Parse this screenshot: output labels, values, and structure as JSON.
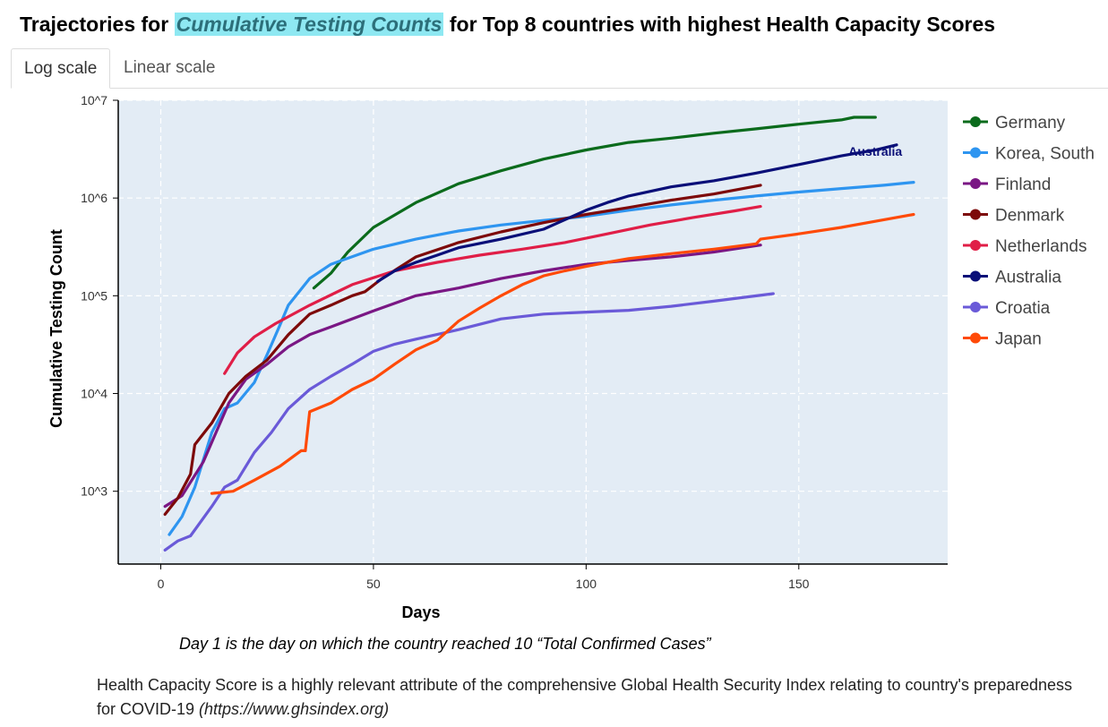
{
  "header": {
    "title_prefix": "Trajectories for ",
    "title_highlight": "Cumulative Testing Counts",
    "title_suffix": " for Top 8 countries with highest Health Capacity Scores"
  },
  "tabs": [
    {
      "label": "Log scale",
      "active": true
    },
    {
      "label": "Linear scale",
      "active": false
    }
  ],
  "notes": {
    "day_note": "Day 1 is the day on which the country reached 10 “Total Confirmed Cases”",
    "description": "Health Capacity Score is a highly relevant attribute of the comprehensive Global Health Security Index relating to country's preparedness for COVID-19 ",
    "url": "(https://www.ghsindex.org)"
  },
  "colors": {
    "plot_background": "#e3ecf5",
    "grid": "#ffffff",
    "highlight": "#8ee8f2"
  },
  "chart_data": {
    "type": "line",
    "yscale": "log",
    "title": "Trajectories for Cumulative Testing Counts for Top 8 countries with highest Health Capacity Scores",
    "xlabel": "Days",
    "ylabel": "Cumulative Testing Count",
    "xlim": [
      -10,
      185
    ],
    "ylim": [
      180,
      10000000
    ],
    "xticks": [
      0,
      50,
      100,
      150
    ],
    "yticks": [
      {
        "value": 1000,
        "label": "10^3"
      },
      {
        "value": 10000,
        "label": "10^4"
      },
      {
        "value": 100000,
        "label": "10^5"
      },
      {
        "value": 1000000,
        "label": "10^6"
      },
      {
        "value": 10000000,
        "label": "10^7"
      }
    ],
    "legend_position": "right",
    "annotations": [
      {
        "text": "Australia",
        "series": "Australia",
        "x": 168,
        "y": 2700000
      }
    ],
    "series": [
      {
        "name": "Germany",
        "color": "#0b6b1c",
        "points": [
          [
            36,
            120000
          ],
          [
            40,
            170000
          ],
          [
            44,
            280000
          ],
          [
            50,
            500000
          ],
          [
            60,
            900000
          ],
          [
            70,
            1400000
          ],
          [
            80,
            1900000
          ],
          [
            90,
            2500000
          ],
          [
            100,
            3100000
          ],
          [
            110,
            3700000
          ],
          [
            120,
            4100000
          ],
          [
            130,
            4600000
          ],
          [
            140,
            5100000
          ],
          [
            150,
            5700000
          ],
          [
            160,
            6300000
          ],
          [
            163,
            6700000
          ],
          [
            168,
            6700000
          ]
        ]
      },
      {
        "name": "Korea, South",
        "color": "#2e95f0",
        "points": [
          [
            2,
            360
          ],
          [
            5,
            550
          ],
          [
            8,
            1100
          ],
          [
            12,
            4000
          ],
          [
            15,
            7000
          ],
          [
            18,
            8000
          ],
          [
            22,
            13000
          ],
          [
            25,
            25000
          ],
          [
            28,
            50000
          ],
          [
            30,
            80000
          ],
          [
            35,
            150000
          ],
          [
            40,
            210000
          ],
          [
            50,
            300000
          ],
          [
            60,
            380000
          ],
          [
            70,
            460000
          ],
          [
            80,
            530000
          ],
          [
            90,
            590000
          ],
          [
            100,
            650000
          ],
          [
            110,
            750000
          ],
          [
            120,
            850000
          ],
          [
            130,
            950000
          ],
          [
            140,
            1050000
          ],
          [
            150,
            1150000
          ],
          [
            160,
            1250000
          ],
          [
            170,
            1350000
          ],
          [
            177,
            1450000
          ]
        ]
      },
      {
        "name": "Finland",
        "color": "#7a1784",
        "points": [
          [
            1,
            700
          ],
          [
            5,
            900
          ],
          [
            10,
            2000
          ],
          [
            13,
            4000
          ],
          [
            16,
            8000
          ],
          [
            20,
            14000
          ],
          [
            25,
            20000
          ],
          [
            30,
            30000
          ],
          [
            35,
            40000
          ],
          [
            40,
            48000
          ],
          [
            50,
            70000
          ],
          [
            60,
            100000
          ],
          [
            70,
            120000
          ],
          [
            80,
            150000
          ],
          [
            90,
            180000
          ],
          [
            100,
            210000
          ],
          [
            110,
            230000
          ],
          [
            120,
            250000
          ],
          [
            130,
            280000
          ],
          [
            141,
            330000
          ]
        ]
      },
      {
        "name": "Denmark",
        "color": "#7d0a0a",
        "points": [
          [
            1,
            580
          ],
          [
            4,
            850
          ],
          [
            7,
            1500
          ],
          [
            8,
            3000
          ],
          [
            12,
            5000
          ],
          [
            16,
            10000
          ],
          [
            20,
            15000
          ],
          [
            25,
            22000
          ],
          [
            30,
            40000
          ],
          [
            35,
            65000
          ],
          [
            40,
            80000
          ],
          [
            45,
            100000
          ],
          [
            48,
            110000
          ],
          [
            52,
            150000
          ],
          [
            60,
            250000
          ],
          [
            70,
            350000
          ],
          [
            80,
            450000
          ],
          [
            90,
            560000
          ],
          [
            100,
            680000
          ],
          [
            110,
            800000
          ],
          [
            120,
            950000
          ],
          [
            130,
            1100000
          ],
          [
            141,
            1350000
          ]
        ]
      },
      {
        "name": "Netherlands",
        "color": "#e01e47",
        "points": [
          [
            15,
            16000
          ],
          [
            18,
            26000
          ],
          [
            22,
            38000
          ],
          [
            27,
            52000
          ],
          [
            35,
            80000
          ],
          [
            45,
            130000
          ],
          [
            55,
            180000
          ],
          [
            65,
            220000
          ],
          [
            75,
            260000
          ],
          [
            85,
            300000
          ],
          [
            95,
            350000
          ],
          [
            105,
            430000
          ],
          [
            115,
            530000
          ],
          [
            125,
            630000
          ],
          [
            135,
            740000
          ],
          [
            141,
            820000
          ]
        ]
      },
      {
        "name": "Australia",
        "color": "#0a0f78",
        "points": [
          [
            51,
            140000
          ],
          [
            55,
            180000
          ],
          [
            60,
            220000
          ],
          [
            65,
            260000
          ],
          [
            70,
            310000
          ],
          [
            80,
            380000
          ],
          [
            90,
            480000
          ],
          [
            95,
            600000
          ],
          [
            100,
            750000
          ],
          [
            105,
            900000
          ],
          [
            110,
            1050000
          ],
          [
            120,
            1300000
          ],
          [
            130,
            1500000
          ],
          [
            140,
            1800000
          ],
          [
            150,
            2200000
          ],
          [
            160,
            2700000
          ],
          [
            168,
            3100000
          ],
          [
            173,
            3500000
          ]
        ]
      },
      {
        "name": "Croatia",
        "color": "#6a5ad8",
        "points": [
          [
            1,
            250
          ],
          [
            4,
            310
          ],
          [
            7,
            350
          ],
          [
            12,
            700
          ],
          [
            15,
            1100
          ],
          [
            18,
            1300
          ],
          [
            22,
            2500
          ],
          [
            26,
            4000
          ],
          [
            30,
            7000
          ],
          [
            35,
            11000
          ],
          [
            40,
            15000
          ],
          [
            45,
            20000
          ],
          [
            50,
            27000
          ],
          [
            55,
            32000
          ],
          [
            60,
            36000
          ],
          [
            70,
            45000
          ],
          [
            80,
            58000
          ],
          [
            90,
            65000
          ],
          [
            100,
            68000
          ],
          [
            110,
            71000
          ],
          [
            120,
            78000
          ],
          [
            130,
            88000
          ],
          [
            144,
            105000
          ]
        ]
      },
      {
        "name": "Japan",
        "color": "#ff4a08",
        "points": [
          [
            12,
            950
          ],
          [
            17,
            1000
          ],
          [
            22,
            1300
          ],
          [
            28,
            1800
          ],
          [
            33,
            2600
          ],
          [
            34,
            2600
          ],
          [
            35,
            6500
          ],
          [
            40,
            8000
          ],
          [
            45,
            11000
          ],
          [
            50,
            14000
          ],
          [
            55,
            20000
          ],
          [
            60,
            28000
          ],
          [
            65,
            35000
          ],
          [
            70,
            55000
          ],
          [
            75,
            75000
          ],
          [
            80,
            100000
          ],
          [
            85,
            130000
          ],
          [
            90,
            160000
          ],
          [
            95,
            180000
          ],
          [
            100,
            200000
          ],
          [
            105,
            220000
          ],
          [
            110,
            240000
          ],
          [
            120,
            270000
          ],
          [
            130,
            300000
          ],
          [
            140,
            340000
          ],
          [
            141,
            380000
          ],
          [
            150,
            430000
          ],
          [
            160,
            500000
          ],
          [
            170,
            600000
          ],
          [
            177,
            680000
          ]
        ]
      }
    ]
  }
}
